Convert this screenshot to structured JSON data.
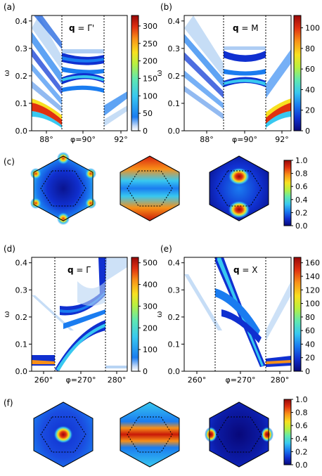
{
  "panel_labels": {
    "a": "(a)",
    "b": "(b)",
    "c": "(c)",
    "d": "(d)",
    "e": "(e)",
    "f": "(f)"
  },
  "colormap": [
    "#08087a",
    "#1030d0",
    "#1a7cf0",
    "#38c8f0",
    "#60e8b0",
    "#b8f040",
    "#f8e020",
    "#f89018",
    "#e03010",
    "#980808"
  ],
  "chart_data": [
    {
      "id": "a",
      "type": "heatmap",
      "title_bold": "q",
      "title_rest": " = Γ'",
      "ylabel": "ω",
      "ylim": [
        0,
        0.42
      ],
      "yticks": [
        "0.0",
        "0.1",
        "0.2",
        "0.3",
        "0.4"
      ],
      "xticks": [
        "88°",
        "φ=90°",
        "92°"
      ],
      "colorbar_ticks": [
        "0",
        "50",
        "100",
        "150",
        "200",
        "250",
        "300"
      ],
      "colorbar_max": 330
    },
    {
      "id": "b",
      "type": "heatmap",
      "title_bold": "q",
      "title_rest": " = M",
      "ylabel": "ω",
      "ylim": [
        0,
        0.42
      ],
      "yticks": [
        "0.0",
        "0.1",
        "0.2",
        "0.3",
        "0.4"
      ],
      "xticks": [
        "88°",
        "φ=90°",
        "92°"
      ],
      "colorbar_ticks": [
        "0",
        "20",
        "40",
        "60",
        "80",
        "100"
      ],
      "colorbar_max": 112
    },
    {
      "id": "d",
      "type": "heatmap",
      "title_bold": "q",
      "title_rest": " = Γ",
      "ylabel": "ω",
      "ylim": [
        0,
        0.42
      ],
      "yticks": [
        "0.0",
        "0.1",
        "0.2",
        "0.3",
        "0.4"
      ],
      "xticks": [
        "260°",
        "φ=270°",
        "280°"
      ],
      "colorbar_ticks": [
        "0",
        "100",
        "200",
        "300",
        "400",
        "500"
      ],
      "colorbar_max": 525
    },
    {
      "id": "e",
      "type": "heatmap",
      "title_bold": "q",
      "title_rest": " = X",
      "ylabel": "ω",
      "ylim": [
        0,
        0.42
      ],
      "yticks": [
        "0.0",
        "0.1",
        "0.2",
        "0.3",
        "0.4"
      ],
      "xticks": [
        "260°",
        "φ=270°",
        "280°"
      ],
      "colorbar_ticks": [
        "0",
        "20",
        "40",
        "60",
        "80",
        "100",
        "120",
        "140",
        "160"
      ],
      "colorbar_max": 168
    },
    {
      "id": "c",
      "type": "heatmap",
      "colorbar_ticks": [
        "0.0",
        "0.2",
        "0.4",
        "0.6",
        "0.8",
        "1.0"
      ],
      "colorbar_max": 1.0
    },
    {
      "id": "f",
      "type": "heatmap",
      "colorbar_ticks": [
        "0.0",
        "0.2",
        "0.4",
        "0.6",
        "0.8",
        "1.0"
      ],
      "colorbar_max": 1.0
    }
  ]
}
